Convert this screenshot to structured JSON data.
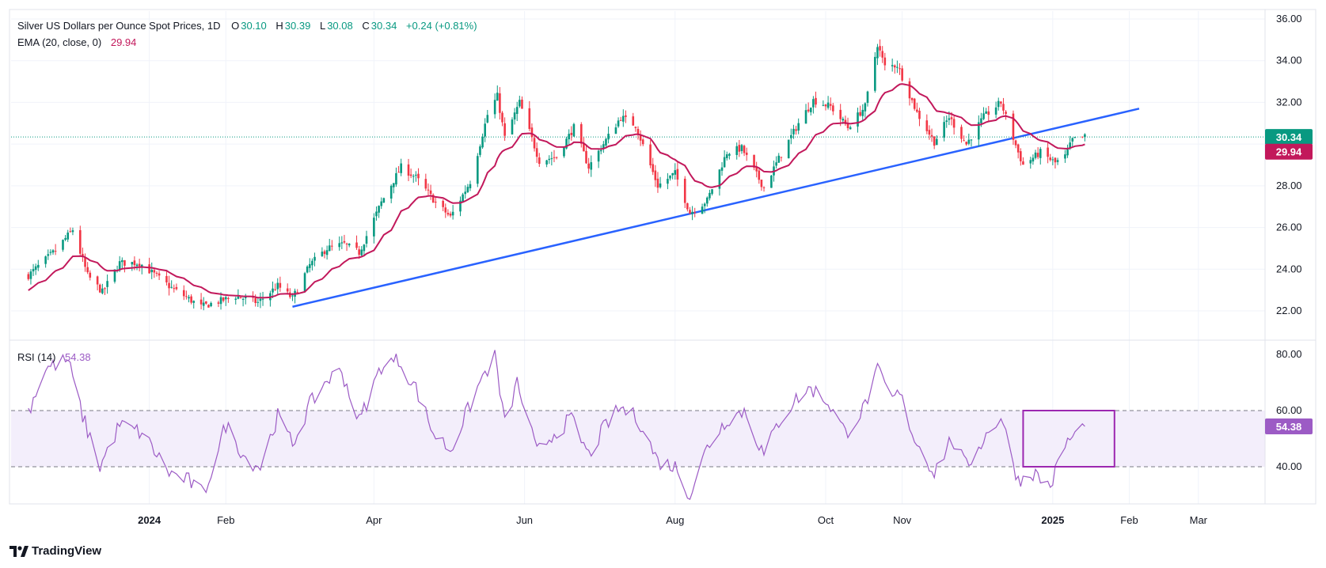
{
  "header": {
    "symbol_title": "Silver US Dollars per Ounce Spot Prices, 1D",
    "o_label": "O",
    "o_value": "30.10",
    "h_label": "H",
    "h_value": "30.39",
    "l_label": "L",
    "l_value": "30.08",
    "c_label": "C",
    "c_value": "30.34",
    "change": "+0.24 (+0.81%)",
    "ema_label": "EMA (20, close, 0)",
    "ema_value": "29.94",
    "rsi_label": "RSI (14)",
    "rsi_value": "54.38"
  },
  "branding": {
    "logo_text": "TradingView"
  },
  "colors": {
    "up": "#089981",
    "down": "#f23645",
    "ema": "#c2185b",
    "trendline": "#2962ff",
    "rsi": "#9c5bc5",
    "rsi_band": "#f3eefb",
    "box": "#9c27b0"
  },
  "chart_data": [
    {
      "type": "candlestick",
      "title": "Silver US Dollars per Ounce Spot Prices, 1D",
      "price_axis_ticks": [
        "36.00",
        "34.00",
        "32.00",
        "30.00",
        "28.00",
        "26.00",
        "24.00",
        "22.00"
      ],
      "ylim": [
        20.8,
        36.6
      ],
      "x_tick_labels": [
        "2024",
        "Feb",
        "Apr",
        "Jun",
        "Aug",
        "Oct",
        "Nov",
        "2025",
        "Feb",
        "Mar"
      ],
      "last_price_label": "30.34",
      "ema_label": "29.94",
      "trendline": {
        "from": {
          "date": "2024-02-28",
          "price": 22.2
        },
        "to": {
          "date": "2025-02-05",
          "price": 31.7
        }
      },
      "price_anchors": [
        [
          "2023-11-13",
          23.7
        ],
        [
          "2023-11-24",
          24.9
        ],
        [
          "2023-12-01",
          25.9
        ],
        [
          "2023-12-07",
          23.7
        ],
        [
          "2023-12-13",
          22.9
        ],
        [
          "2023-12-20",
          24.3
        ],
        [
          "2023-12-28",
          24.3
        ],
        [
          "2024-01-10",
          23.1
        ],
        [
          "2024-01-22",
          22.2
        ],
        [
          "2024-02-05",
          22.7
        ],
        [
          "2024-02-14",
          22.4
        ],
        [
          "2024-02-22",
          23.2
        ],
        [
          "2024-02-28",
          22.6
        ],
        [
          "2024-03-06",
          24.2
        ],
        [
          "2024-03-13",
          25.0
        ],
        [
          "2024-03-20",
          25.2
        ],
        [
          "2024-03-26",
          24.8
        ],
        [
          "2024-04-04",
          27.2
        ],
        [
          "2024-04-12",
          28.9
        ],
        [
          "2024-04-18",
          28.4
        ],
        [
          "2024-04-26",
          27.2
        ],
        [
          "2024-05-02",
          26.5
        ],
        [
          "2024-05-10",
          28.2
        ],
        [
          "2024-05-17",
          31.4
        ],
        [
          "2024-05-21",
          32.3
        ],
        [
          "2024-05-24",
          30.3
        ],
        [
          "2024-05-30",
          32.0
        ],
        [
          "2024-06-07",
          29.2
        ],
        [
          "2024-06-14",
          29.4
        ],
        [
          "2024-06-21",
          30.8
        ],
        [
          "2024-06-27",
          28.9
        ],
        [
          "2024-07-10",
          31.3
        ],
        [
          "2024-07-16",
          30.9
        ],
        [
          "2024-07-25",
          28.0
        ],
        [
          "2024-08-01",
          28.6
        ],
        [
          "2024-08-07",
          26.7
        ],
        [
          "2024-08-14",
          27.3
        ],
        [
          "2024-08-22",
          29.6
        ],
        [
          "2024-08-28",
          29.8
        ],
        [
          "2024-09-06",
          27.9
        ],
        [
          "2024-09-12",
          29.3
        ],
        [
          "2024-09-20",
          31.0
        ],
        [
          "2024-09-26",
          32.1
        ],
        [
          "2024-10-03",
          31.8
        ],
        [
          "2024-10-10",
          30.8
        ],
        [
          "2024-10-17",
          31.8
        ],
        [
          "2024-10-22",
          34.8
        ],
        [
          "2024-10-25",
          33.7
        ],
        [
          "2024-10-30",
          33.8
        ],
        [
          "2024-11-07",
          31.5
        ],
        [
          "2024-11-14",
          30.1
        ],
        [
          "2024-11-20",
          31.3
        ],
        [
          "2024-11-27",
          30.0
        ],
        [
          "2024-12-04",
          31.3
        ],
        [
          "2024-12-11",
          32.0
        ],
        [
          "2024-12-18",
          29.6
        ],
        [
          "2024-12-20",
          29.0
        ],
        [
          "2024-12-27",
          29.6
        ],
        [
          "2025-01-02",
          29.1
        ],
        [
          "2025-01-06",
          29.4
        ],
        [
          "2025-01-09",
          30.2
        ],
        [
          "2025-01-14",
          30.34
        ]
      ]
    },
    {
      "type": "line",
      "title": "RSI (14)",
      "rsi_axis_ticks": [
        "80.00",
        "60.00",
        "40.00"
      ],
      "ylim": [
        26,
        84
      ],
      "band": [
        40,
        60
      ],
      "last_value_label": "54.38",
      "highlight_box": {
        "from": "2024-12-20",
        "to": "2025-01-26",
        "low": 40,
        "high": 60
      },
      "rsi_anchors": [
        [
          "2023-11-13",
          60
        ],
        [
          "2023-11-20",
          75
        ],
        [
          "2023-11-29",
          78
        ],
        [
          "2023-12-05",
          58
        ],
        [
          "2023-12-12",
          40
        ],
        [
          "2023-12-20",
          55
        ],
        [
          "2023-12-29",
          52
        ],
        [
          "2024-01-09",
          38
        ],
        [
          "2024-01-17",
          35
        ],
        [
          "2024-01-23",
          30
        ],
        [
          "2024-02-01",
          55
        ],
        [
          "2024-02-09",
          43
        ],
        [
          "2024-02-15",
          40
        ],
        [
          "2024-02-22",
          58
        ],
        [
          "2024-02-28",
          48
        ],
        [
          "2024-03-06",
          62
        ],
        [
          "2024-03-13",
          71
        ],
        [
          "2024-03-19",
          74
        ],
        [
          "2024-03-26",
          56
        ],
        [
          "2024-04-04",
          76
        ],
        [
          "2024-04-11",
          78
        ],
        [
          "2024-04-18",
          68
        ],
        [
          "2024-04-25",
          52
        ],
        [
          "2024-05-02",
          46
        ],
        [
          "2024-05-09",
          60
        ],
        [
          "2024-05-15",
          72
        ],
        [
          "2024-05-20",
          79
        ],
        [
          "2024-05-24",
          55
        ],
        [
          "2024-05-29",
          70
        ],
        [
          "2024-06-06",
          45
        ],
        [
          "2024-06-13",
          52
        ],
        [
          "2024-06-20",
          57
        ],
        [
          "2024-06-27",
          44
        ],
        [
          "2024-07-04",
          55
        ],
        [
          "2024-07-10",
          61
        ],
        [
          "2024-07-17",
          57
        ],
        [
          "2024-07-25",
          42
        ],
        [
          "2024-08-01",
          40
        ],
        [
          "2024-08-07",
          30
        ],
        [
          "2024-08-14",
          47
        ],
        [
          "2024-08-22",
          57
        ],
        [
          "2024-08-29",
          60
        ],
        [
          "2024-09-06",
          44
        ],
        [
          "2024-09-12",
          56
        ],
        [
          "2024-09-19",
          64
        ],
        [
          "2024-09-25",
          68
        ],
        [
          "2024-10-02",
          63
        ],
        [
          "2024-10-09",
          52
        ],
        [
          "2024-10-16",
          60
        ],
        [
          "2024-10-22",
          74
        ],
        [
          "2024-10-28",
          64
        ],
        [
          "2024-10-31",
          66
        ],
        [
          "2024-11-06",
          50
        ],
        [
          "2024-11-14",
          38
        ],
        [
          "2024-11-21",
          50
        ],
        [
          "2024-11-27",
          40
        ],
        [
          "2024-12-04",
          50
        ],
        [
          "2024-12-11",
          58
        ],
        [
          "2024-12-18",
          35
        ],
        [
          "2024-12-24",
          38
        ],
        [
          "2024-12-31",
          33
        ],
        [
          "2025-01-06",
          48
        ],
        [
          "2025-01-14",
          54.38
        ]
      ]
    }
  ]
}
